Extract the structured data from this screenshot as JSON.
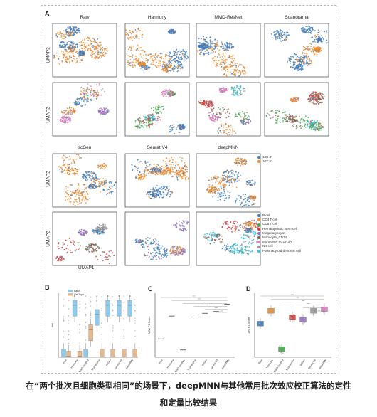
{
  "figure": {
    "panel_a_label": "A",
    "panel_b_label": "B",
    "panel_c_label": "C",
    "panel_d_label": "D",
    "methods_top": [
      "Raw",
      "Harmony",
      "MMD-ResNet",
      "Scanorama"
    ],
    "methods_bottom": [
      "scGen",
      "Seurat V4",
      "deepMNN"
    ],
    "umap_y_label": "UMAP2",
    "umap_x_label": "UMAP1",
    "batch_legend": [
      {
        "label": "10X 3'",
        "color": "#3a7bbf"
      },
      {
        "label": "10X 5'",
        "color": "#f08a2c"
      }
    ],
    "celltype_legend": [
      {
        "label": "B cell",
        "color": "#3a7bbf"
      },
      {
        "label": "CD4 T cell",
        "color": "#f08a2c"
      },
      {
        "label": "CD8 T cell",
        "color": "#42a84a"
      },
      {
        "label": "Hematopoietic stem cell",
        "color": "#d43d3d"
      },
      {
        "label": "Megakaryocyte",
        "color": "#9a6cc4"
      },
      {
        "label": "Monocyte_CD14",
        "color": "#8a5a44"
      },
      {
        "label": "Monocyte_FCGR3A",
        "color": "#e27bc2"
      },
      {
        "label": "NK cell",
        "color": "#9a9a9a"
      },
      {
        "label": "Plasmacytoid dendritic cell",
        "color": "#2ec4d6"
      }
    ],
    "colors": {
      "blue": "#3a7bbf",
      "orange": "#f08a2c",
      "green": "#42a84a",
      "red": "#d43d3d",
      "purple": "#9a6cc4",
      "brown": "#8a5a44",
      "pink": "#e27bc2",
      "gray": "#9a9a9a",
      "cyan": "#2ec4d6",
      "box_blue": "#8ecbea",
      "box_tan": "#e3b98d"
    }
  },
  "chart_data": [
    {
      "type": "box",
      "panel": "B",
      "ylabel": "ilisi",
      "legend": [
        "Batch",
        "CellType"
      ],
      "categories": [
        "Raw",
        "Harmony",
        "MMD-ResNet",
        "Scanorama",
        "scGen",
        "Seurat V4",
        "deepMNN"
      ],
      "series": [
        {
          "name": "Batch",
          "median": [
            0.05,
            0.85,
            0.05,
            0.7,
            0.85,
            0.85,
            0.85
          ]
        },
        {
          "name": "CellType",
          "median": [
            0.02,
            0.02,
            0.45,
            0.05,
            0.05,
            0.05,
            0.05
          ]
        }
      ]
    },
    {
      "type": "scatter",
      "panel": "C",
      "ylabel": "ASW F1 Score",
      "categories": [
        "Raw",
        "Harmony",
        "MMD-ResNet",
        "Scanorama",
        "scGen",
        "Seurat V4",
        "deepMNN"
      ],
      "values": [
        0.3,
        0.55,
        0.18,
        0.54,
        0.58,
        0.6,
        0.68
      ],
      "ylim": [
        0.1,
        0.8
      ],
      "significance": "****"
    },
    {
      "type": "box",
      "panel": "D",
      "ylabel": "ARI F1 Score",
      "categories": [
        "Raw",
        "Harmony",
        "MMD-ResNet",
        "Scanorama",
        "scGen",
        "Seurat V4",
        "deepMNN"
      ],
      "values": [
        0.62,
        0.78,
        0.3,
        0.7,
        0.67,
        0.78,
        0.8
      ],
      "ylim": [
        0.2,
        1.0
      ],
      "significance": [
        "****",
        "****",
        "****",
        "****",
        "ns",
        "ns"
      ]
    }
  ],
  "caption": {
    "line1": "在“两个批次且细胞类型相同”的场景下，deepMNN与其他常用批次效应校正算法的定性",
    "line2": "和定量比较结果"
  }
}
